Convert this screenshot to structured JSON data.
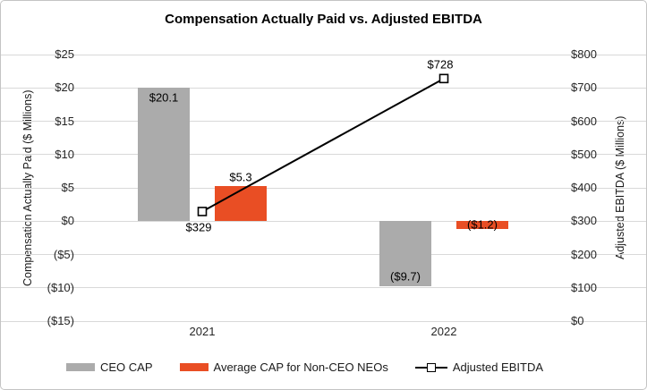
{
  "chart_data": {
    "type": "combo-bar-line",
    "title": "Compensation Actually Paid vs. Adjusted EBITDA",
    "categories": [
      "2021",
      "2022"
    ],
    "series": [
      {
        "name": "CEO CAP",
        "type": "bar",
        "axis": "left",
        "color": "#ABABAB",
        "values": [
          20.1,
          -9.7
        ],
        "data_labels": [
          "$20.1",
          "($9.7)"
        ],
        "label_positions": [
          "inside-top",
          "inside-bottom"
        ]
      },
      {
        "name": "Average CAP for Non-CEO NEOs",
        "type": "bar",
        "axis": "left",
        "color": "#E94E24",
        "values": [
          5.3,
          -1.2
        ],
        "data_labels": [
          "$5.3",
          "($1.2)"
        ],
        "label_positions": [
          "above",
          "center"
        ]
      },
      {
        "name": "Adjusted EBITDA",
        "type": "line",
        "axis": "right",
        "color": "#000000",
        "marker": "hollow-square",
        "values": [
          329,
          728
        ],
        "data_labels": [
          "$329",
          "$728"
        ],
        "label_positions": [
          "below",
          "above"
        ]
      }
    ],
    "left_axis": {
      "label": "Compensation Actually Paid ($ Millions)",
      "min": -15,
      "max": 25,
      "step": 5,
      "ticks": [
        "$25",
        "$20",
        "$15",
        "$10",
        "$5",
        "$0",
        "($5)",
        "($10)",
        "($15)"
      ]
    },
    "right_axis": {
      "label": "Adjusted EBITDA ($ Millions)",
      "min": 0,
      "max": 800,
      "step": 100,
      "ticks": [
        "$800",
        "$700",
        "$600",
        "$500",
        "$400",
        "$300",
        "$200",
        "$100",
        "$0"
      ]
    },
    "grid": true,
    "legend_position": "bottom"
  }
}
